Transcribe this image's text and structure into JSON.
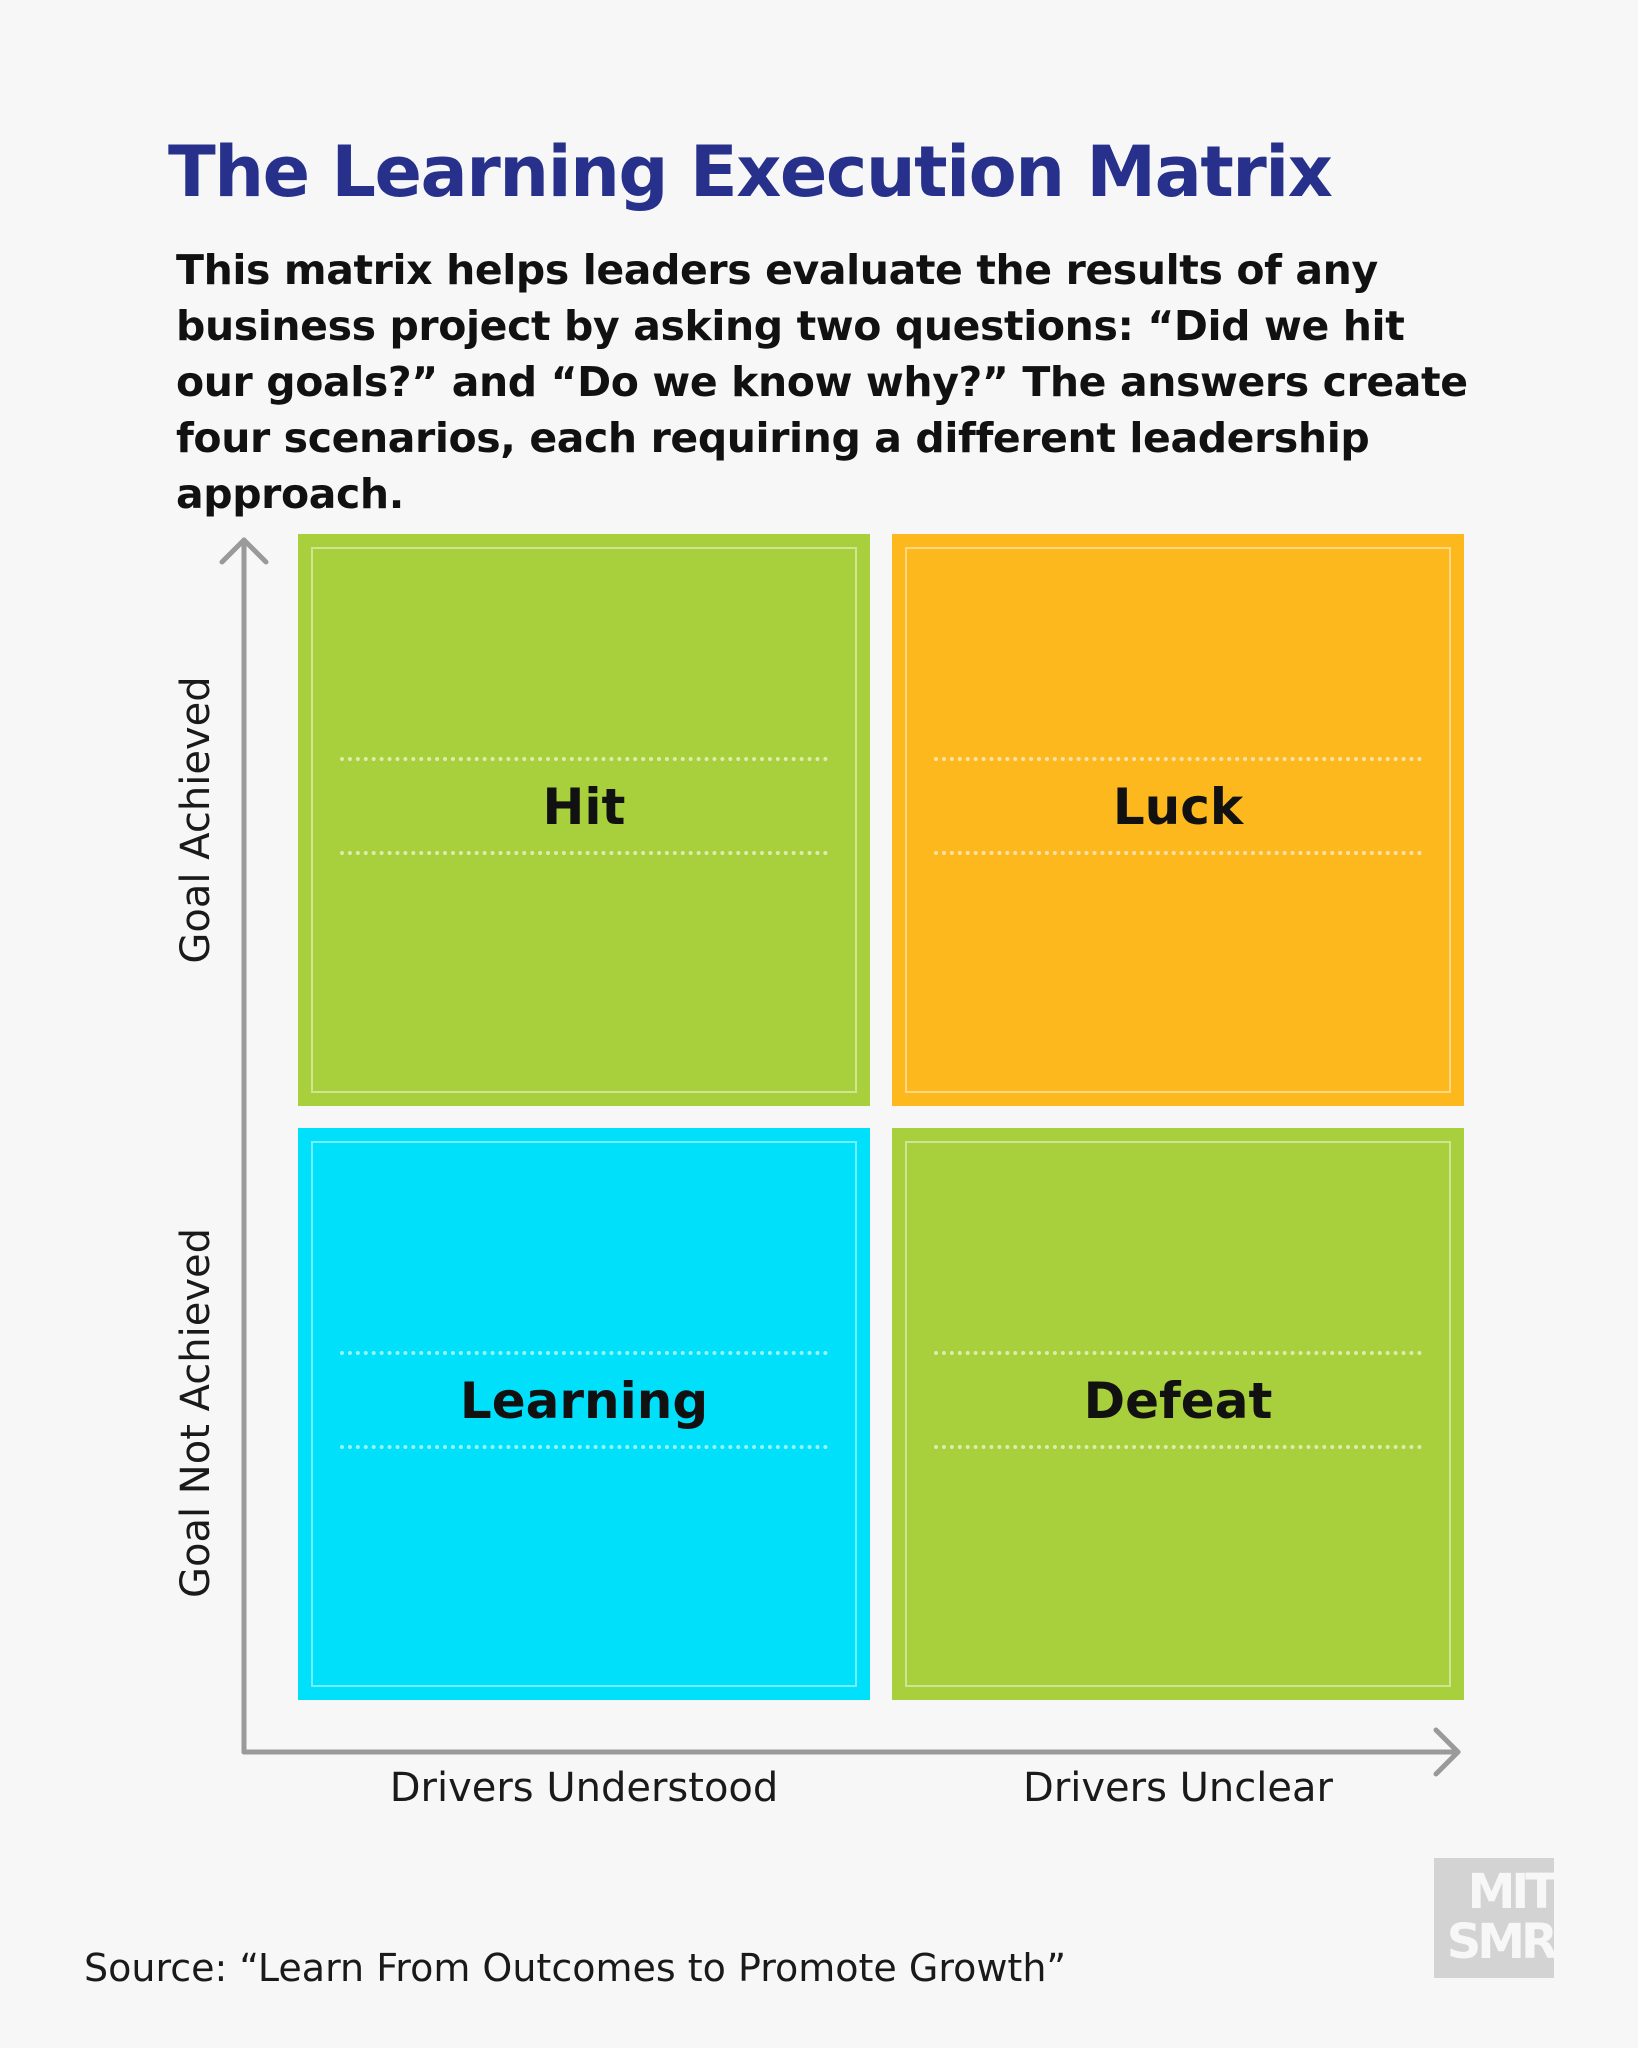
{
  "title": "The Learning Execution Matrix",
  "subtitle": "This matrix helps leaders evaluate the results of any business project by asking two questions: “Did we hit our goals?” and “Do we know why?” The answers create four scenarios, each requiring a different leadership approach.",
  "y_axis": {
    "top_label": "Goal Achieved",
    "bottom_label": "Goal Not Achieved"
  },
  "x_axis": {
    "left_label": "Drivers Understood",
    "right_label": "Drivers Unclear"
  },
  "quadrants": [
    {
      "label": "Hit",
      "color": "#a8cf3c"
    },
    {
      "label": "Luck",
      "color": "#fdb81e"
    },
    {
      "label": "Learning",
      "color": "#00e0fb"
    },
    {
      "label": "Defeat",
      "color": "#a8cf3c"
    }
  ],
  "source": "Source: “Learn From Outcomes to Promote Growth”",
  "logo": {
    "line1": "MIT",
    "line2": "SMR"
  }
}
